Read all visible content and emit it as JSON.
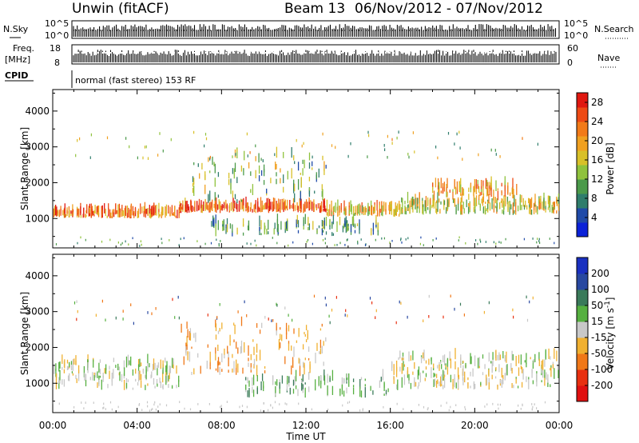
{
  "header": {
    "station": "Unwin (fitACF)",
    "beam": "Beam 13",
    "date_range": "06/Nov/2012 - 07/Nov/2012"
  },
  "summary_panels": {
    "nsky_label": "N.Sky",
    "nsky_top": "10^5",
    "nsky_bottom": "10^0",
    "nsearch_label": "N.Search",
    "nsearch_top": "10^5",
    "nsearch_bottom": "10^0",
    "freq_label_1": "Freq.",
    "freq_label_2": "[MHz]",
    "freq_top": "18",
    "freq_bottom": "8",
    "nave_label": "Nave",
    "nave_top": "60",
    "nave_bottom": "0",
    "cpid_label": "CPID",
    "cpid_text": "normal (fast stereo) 153 RF"
  },
  "chart_data": [
    {
      "type": "heatmap",
      "parameter": "Power",
      "ylabel": "Slant Range [km]",
      "xlabel": "",
      "x_range_hours": [
        0,
        24
      ],
      "ylim": [
        180,
        4600
      ],
      "yticks": [
        1000,
        2000,
        3000,
        4000
      ],
      "colorbar": {
        "label": "Power [dB]",
        "ticks": [
          "4",
          "8",
          "12",
          "16",
          "20",
          "24",
          "28"
        ],
        "range": [
          0,
          30
        ],
        "colors": [
          "#0b22d8",
          "#1f4aa8",
          "#2f7d6c",
          "#4b9a4a",
          "#8fc23c",
          "#d8c028",
          "#f0a020",
          "#f27a18",
          "#ee4a14",
          "#e01810"
        ]
      },
      "bands": [
        {
          "t0": 0.0,
          "t1": 6.0,
          "r0": 1000,
          "r1": 1150,
          "power": 22,
          "density": 0.9
        },
        {
          "t0": 6.0,
          "t1": 13.0,
          "r0": 1150,
          "r1": 1300,
          "power": 24,
          "density": 0.95
        },
        {
          "t0": 13.0,
          "t1": 16.5,
          "r0": 1050,
          "r1": 1250,
          "power": 18,
          "density": 0.85
        },
        {
          "t0": 16.5,
          "t1": 24.0,
          "r0": 1100,
          "r1": 1450,
          "power": 16,
          "density": 0.85
        },
        {
          "t0": 6.5,
          "t1": 13.0,
          "r0": 1400,
          "r1": 2700,
          "power": 12,
          "density": 0.4
        },
        {
          "t0": 18.0,
          "t1": 22.0,
          "r0": 1500,
          "r1": 1900,
          "power": 20,
          "density": 0.6
        },
        {
          "t0": 7.5,
          "t1": 15.5,
          "r0": 500,
          "r1": 850,
          "power": 10,
          "density": 0.4
        }
      ]
    },
    {
      "type": "heatmap",
      "parameter": "Velocity",
      "ylabel": "Slant Range [km]",
      "xlabel": "Time UT",
      "x_range_hours": [
        0,
        24
      ],
      "xticks": [
        "00:00",
        "04:00",
        "08:00",
        "12:00",
        "16:00",
        "20:00",
        "00:00"
      ],
      "ylim": [
        180,
        4600
      ],
      "yticks": [
        1000,
        2000,
        3000,
        4000
      ],
      "colorbar": {
        "label": "Velocity [m s^-1]",
        "ticks": [
          "200",
          "100",
          "50",
          "15",
          "-15",
          "-50",
          "-100",
          "-200"
        ],
        "colors": [
          "#1a30c0",
          "#2848a0",
          "#3a7a5a",
          "#56b040",
          "#c8c8c8",
          "#f0b030",
          "#f07818",
          "#e83010",
          "#e01010"
        ]
      },
      "bands": [
        {
          "t0": 0.0,
          "t1": 6.0,
          "r0": 800,
          "r1": 1600,
          "velocity": 0,
          "density": 0.8
        },
        {
          "t0": 6.0,
          "t1": 13.0,
          "r0": 1200,
          "r1": 2600,
          "velocity": -40,
          "density": 0.55
        },
        {
          "t0": 9.0,
          "t1": 16.0,
          "r0": 600,
          "r1": 1100,
          "velocity": 30,
          "density": 0.45
        },
        {
          "t0": 16.0,
          "t1": 24.0,
          "r0": 800,
          "r1": 1700,
          "velocity": 0,
          "density": 0.8
        }
      ]
    }
  ]
}
